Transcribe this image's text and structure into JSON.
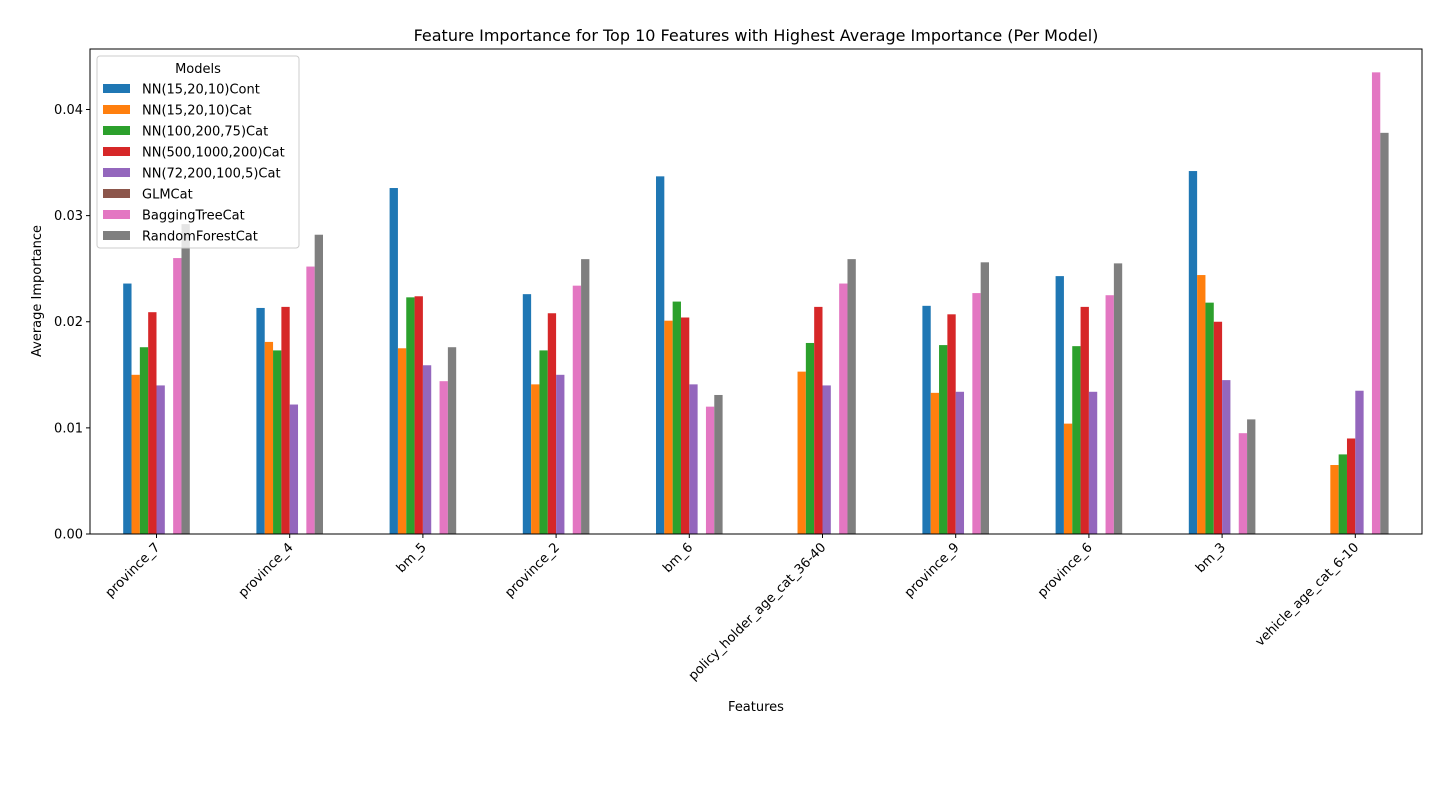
{
  "chart_data": {
    "type": "bar",
    "title": "Feature Importance for Top 10 Features with Highest Average Importance (Per Model)",
    "xlabel": "Features",
    "ylabel": "Average Importance",
    "ylim": [
      0,
      0.0457
    ],
    "yticks": [
      "0.00",
      "0.01",
      "0.02",
      "0.03",
      "0.04"
    ],
    "grid": false,
    "legend_title": "Models",
    "legend_position": "top-left",
    "categories": [
      "province_7",
      "province_4",
      "bm_5",
      "province_2",
      "bm_6",
      "policy_holder_age_cat_36-40",
      "province_9",
      "province_6",
      "bm_3",
      "vehicle_age_cat_6-10"
    ],
    "series": [
      {
        "name": "NN(15,20,10)Cont",
        "color": "#1f77b4",
        "values": [
          0.0236,
          0.0213,
          0.0326,
          0.0226,
          0.0337,
          0.0,
          0.0215,
          0.0243,
          0.0342,
          0.0
        ]
      },
      {
        "name": "NN(15,20,10)Cat",
        "color": "#ff7f0e",
        "values": [
          0.015,
          0.0181,
          0.0175,
          0.0141,
          0.0201,
          0.0153,
          0.0133,
          0.0104,
          0.0244,
          0.0065
        ]
      },
      {
        "name": "NN(100,200,75)Cat",
        "color": "#2ca02c",
        "values": [
          0.0176,
          0.0173,
          0.0223,
          0.0173,
          0.0219,
          0.018,
          0.0178,
          0.0177,
          0.0218,
          0.0075
        ]
      },
      {
        "name": "NN(500,1000,200)Cat",
        "color": "#d62728",
        "values": [
          0.0209,
          0.0214,
          0.0224,
          0.0208,
          0.0204,
          0.0214,
          0.0207,
          0.0214,
          0.02,
          0.009
        ]
      },
      {
        "name": "NN(72,200,100,5)Cat",
        "color": "#9467bd",
        "values": [
          0.014,
          0.0122,
          0.0159,
          0.015,
          0.0141,
          0.014,
          0.0134,
          0.0134,
          0.0145,
          0.0135
        ]
      },
      {
        "name": "GLMCat",
        "color": "#8c564b",
        "values": [
          0.0,
          0.0,
          0.0,
          0.0,
          0.0,
          0.0,
          0.0,
          0.0,
          0.0,
          0.0
        ]
      },
      {
        "name": "BaggingTreeCat",
        "color": "#e377c2",
        "values": [
          0.026,
          0.0252,
          0.0144,
          0.0234,
          0.012,
          0.0236,
          0.0227,
          0.0225,
          0.0095,
          0.0435
        ]
      },
      {
        "name": "RandomForestCat",
        "color": "#7f7f7f",
        "values": [
          0.0292,
          0.0282,
          0.0176,
          0.0259,
          0.0131,
          0.0259,
          0.0256,
          0.0255,
          0.0108,
          0.0378
        ]
      }
    ]
  }
}
